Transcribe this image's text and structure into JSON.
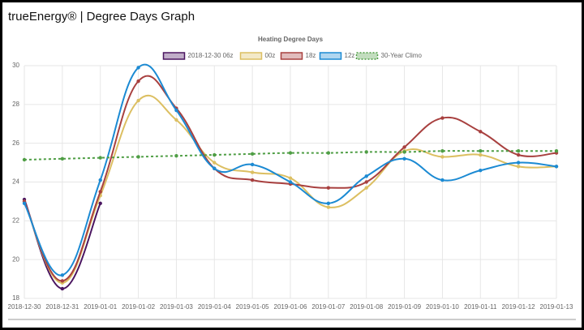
{
  "header": {
    "title": "trueEnergy® | Degree Days Graph"
  },
  "chart_data": {
    "type": "line",
    "title": "Heating Degree Days",
    "categories": [
      "2018-12-30",
      "2018-12-31",
      "2019-01-01",
      "2019-01-02",
      "2019-01-03",
      "2019-01-04",
      "2019-01-05",
      "2019-01-06",
      "2019-01-07",
      "2019-01-08",
      "2019-01-09",
      "2019-01-10",
      "2019-01-11",
      "2019-01-12",
      "2019-01-13"
    ],
    "series": [
      {
        "name": "2018-12-30 06z",
        "color": "#4a1560",
        "values": [
          23.1,
          18.5,
          22.9,
          null,
          null,
          null,
          null,
          null,
          null,
          null,
          null,
          null,
          null,
          null,
          null
        ]
      },
      {
        "name": "00z",
        "color": "#dcbf62",
        "values": [
          23.0,
          18.8,
          23.3,
          28.2,
          27.2,
          25.0,
          24.5,
          24.2,
          22.7,
          23.7,
          25.6,
          25.3,
          25.4,
          24.8,
          24.8
        ]
      },
      {
        "name": "18z",
        "color": "#a8403f",
        "values": [
          23.0,
          18.9,
          23.5,
          29.2,
          27.8,
          24.7,
          24.1,
          23.9,
          23.7,
          24.0,
          25.8,
          27.3,
          26.6,
          25.4,
          25.5
        ]
      },
      {
        "name": "12z",
        "color": "#1b8ad3",
        "values": [
          22.9,
          19.2,
          24.1,
          29.9,
          27.7,
          24.7,
          24.9,
          24.0,
          22.9,
          24.3,
          25.2,
          24.1,
          24.6,
          25.0,
          24.8
        ]
      },
      {
        "name": "30-Year Climo",
        "color": "#4f9e45",
        "dashed": true,
        "values": [
          25.15,
          25.2,
          25.25,
          25.3,
          25.35,
          25.4,
          25.45,
          25.5,
          25.5,
          25.55,
          25.55,
          25.6,
          25.6,
          25.6,
          25.6
        ]
      }
    ],
    "ylim": [
      18,
      30
    ],
    "yticks": [
      18,
      20,
      22,
      24,
      26,
      28,
      30
    ],
    "grid": true,
    "legend": "top"
  }
}
